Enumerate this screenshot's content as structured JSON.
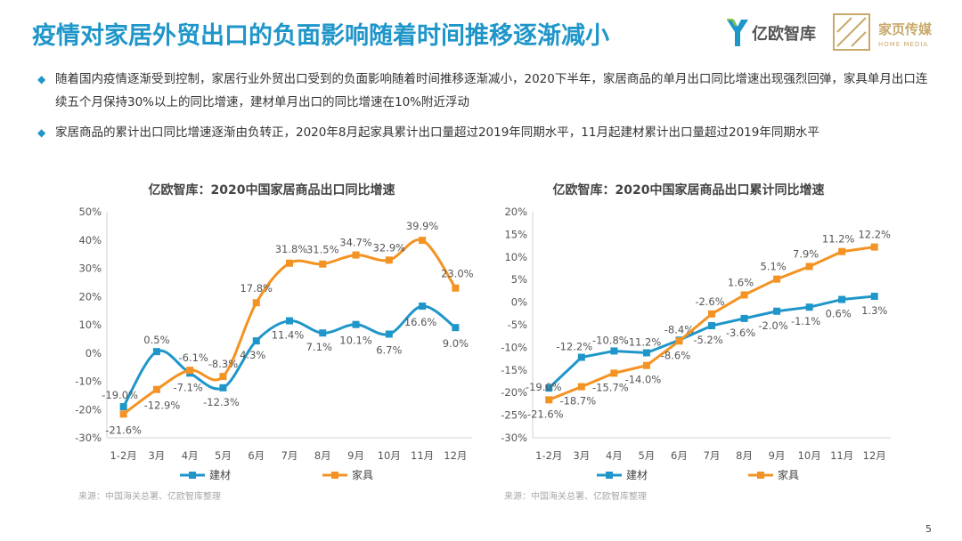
{
  "page": {
    "title": "疫情对家居外贸出口的负面影响随着时间推移逐渐减小",
    "bullets": [
      "随着国内疫情逐渐受到控制，家居行业外贸出口受到的负面影响随着时间推移逐渐减小，2020下半年，家居商品的单月出口同比增速出现强烈回弹，家具单月出口连续五个月保持30%以上的同比增速，建材单月出口的同比增速在10%附近浮动",
      "家居商品的累计出口同比增速逐渐由负转正，2020年8月起家具累计出口量超过2019年同期水平，11月起建材累计出口量超过2019年同期水平"
    ],
    "page_number": "5",
    "logos": {
      "yiou_text": "亿欧智库",
      "home_text": "家页传媒",
      "home_sub": "HOME MEDIA"
    },
    "colors": {
      "title": "#1f96c9",
      "jiancai": "#1f96c9",
      "jiaju": "#f39323"
    }
  },
  "chart_data": [
    {
      "type": "line",
      "title": "亿欧智库：2020中国家居商品出口同比增速",
      "categories": [
        "1-2月",
        "3月",
        "4月",
        "5月",
        "6月",
        "7月",
        "8月",
        "9月",
        "10月",
        "11月",
        "12月"
      ],
      "series": [
        {
          "name": "建材",
          "values": [
            -19.0,
            0.5,
            -7.1,
            -12.3,
            4.3,
            11.4,
            7.1,
            10.1,
            6.7,
            16.6,
            9.0
          ],
          "labels": [
            "-19.0%",
            "0.5%",
            "-7.1%",
            "-12.3%",
            "4.3%",
            "11.4%",
            "7.1%",
            "10.1%",
            "6.7%",
            "16.6%",
            "9.0%"
          ]
        },
        {
          "name": "家具",
          "values": [
            -21.6,
            -12.9,
            -6.1,
            -8.3,
            17.8,
            31.8,
            31.5,
            34.7,
            32.9,
            39.9,
            23.0
          ],
          "labels": [
            "-21.6%",
            "-12.9%",
            "-6.1%",
            "-8.3%",
            "17.8%",
            "31.8%",
            "31.5%",
            "34.7%",
            "32.9%",
            "39.9%",
            "23.0%"
          ]
        }
      ],
      "ylim": [
        -30,
        50
      ],
      "ytick_values": [
        -30,
        -20,
        -10,
        0,
        10,
        20,
        30,
        40,
        50
      ],
      "ytick_labels": [
        "-30%",
        "-20%",
        "-10%",
        "0%",
        "10%",
        "20%",
        "30%",
        "40%",
        "50%"
      ],
      "smooth": true,
      "grid": false,
      "legend": "bottom",
      "source": "来源：中国海关总署、亿欧智库整理"
    },
    {
      "type": "line",
      "title": "亿欧智库：2020中国家居商品出口累计同比增速",
      "categories": [
        "1-2月",
        "3月",
        "4月",
        "5月",
        "6月",
        "7月",
        "8月",
        "9月",
        "10月",
        "11月",
        "12月"
      ],
      "series": [
        {
          "name": "建材",
          "values": [
            -19.0,
            -12.2,
            -10.8,
            -11.2,
            -8.4,
            -5.2,
            -3.6,
            -2.0,
            -1.1,
            0.6,
            1.3
          ],
          "labels": [
            "-19.0%",
            "-12.2%",
            "-10.8%",
            "-11.2%",
            "-8.4%",
            "-5.2%",
            "-3.6%",
            "-2.0%",
            "-1.1%",
            "0.6%",
            "1.3%"
          ]
        },
        {
          "name": "家具",
          "values": [
            -21.6,
            -18.7,
            -15.7,
            -14.0,
            -8.6,
            -2.6,
            1.6,
            5.1,
            7.9,
            11.2,
            12.2
          ],
          "labels": [
            "-21.6%",
            "-18.7%",
            "-15.7%",
            "-14.0%",
            "-8.6%",
            "-2.6%",
            "1.6%",
            "5.1%",
            "7.9%",
            "11.2%",
            "12.2%"
          ]
        }
      ],
      "ylim": [
        -30,
        20
      ],
      "ytick_values": [
        -30,
        -25,
        -20,
        -15,
        -10,
        -5,
        0,
        5,
        10,
        15,
        20
      ],
      "ytick_labels": [
        "-30%",
        "-25%",
        "-20%",
        "-15%",
        "-10%",
        "-5%",
        "0%",
        "5%",
        "10%",
        "15%",
        "20%"
      ],
      "smooth": false,
      "grid": false,
      "legend": "bottom",
      "source": "来源：中国海关总署、亿欧智库整理"
    }
  ]
}
